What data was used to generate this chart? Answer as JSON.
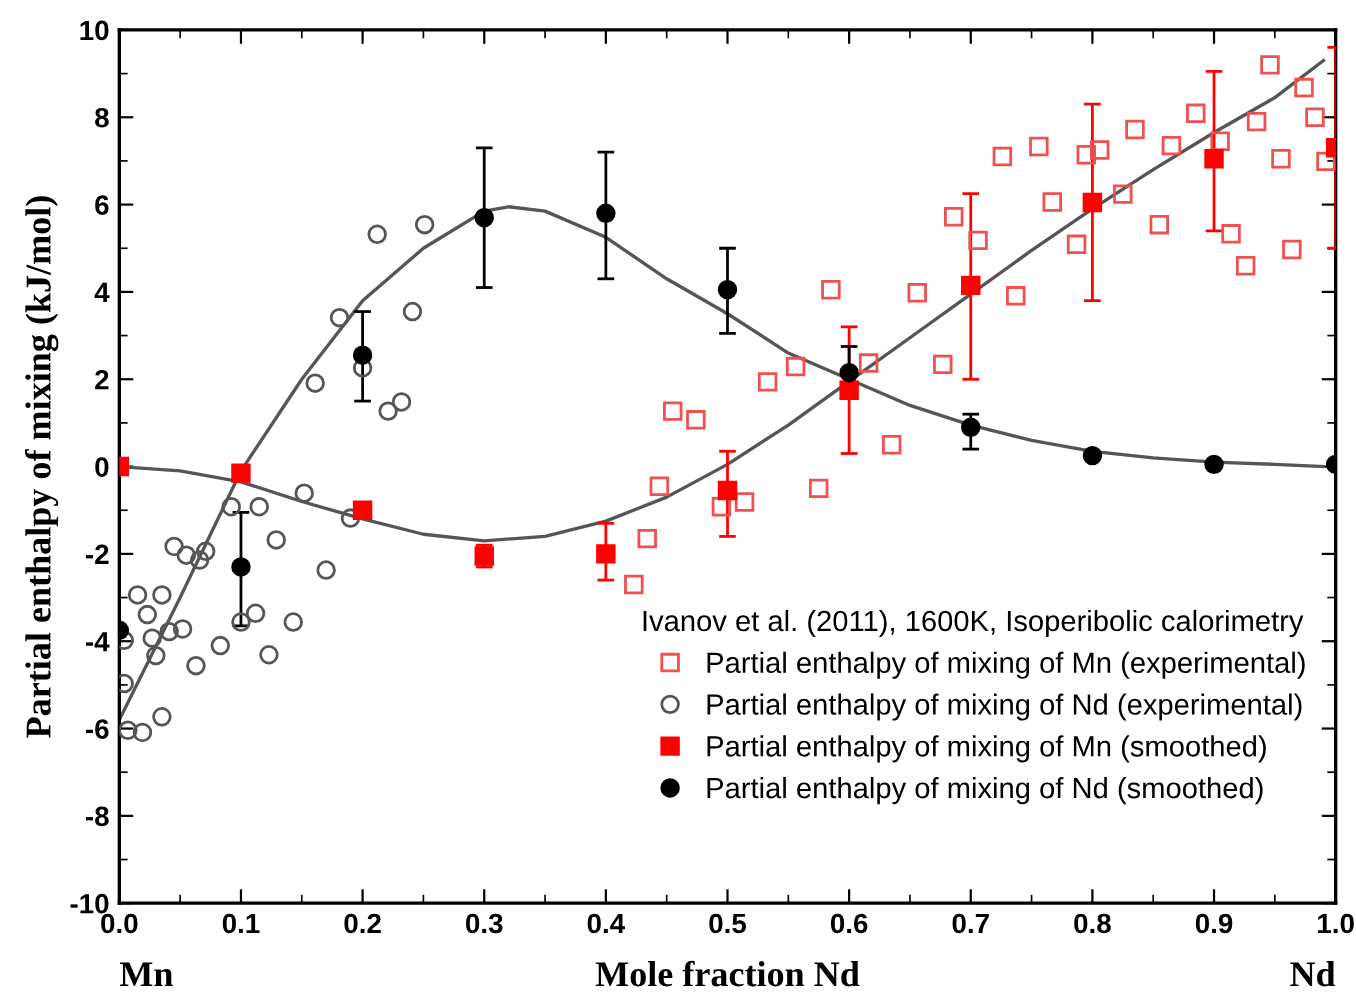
{
  "chart_data": {
    "type": "scatter",
    "xlabel": "Mole fraction Nd",
    "ylabel": "Partial enthalpy of mixing (kJ/mol)",
    "legend_title": "Ivanov et al. (2011), 1600K, Isoperibolic calorimetry",
    "annotations": [
      "Mn",
      "Nd"
    ],
    "xlim": [
      0,
      1
    ],
    "ylim": [
      -10,
      10
    ],
    "xticks": [
      {
        "value": 0,
        "label": "0.0"
      },
      0.1,
      0.2,
      0.3,
      0.4,
      0.5,
      0.6,
      0.7,
      0.8,
      0.9,
      {
        "value": 1,
        "label": "1.0"
      }
    ],
    "yticks": [
      -10,
      -8,
      -6,
      -4,
      -2,
      0,
      2,
      4,
      6,
      8,
      10
    ],
    "grid": false,
    "legend": "bottom right",
    "series": [
      {
        "type": "line",
        "color": "#555555",
        "marker": "none",
        "line_style": "solid",
        "x": [
          0,
          0.05,
          0.1,
          0.15,
          0.2,
          0.25,
          0.3,
          0.35,
          0.4,
          0.45,
          0.5,
          0.55,
          0.6,
          0.65,
          0.7,
          0.75,
          0.8,
          0.85,
          0.9,
          0.95,
          0.99
        ],
        "values": [
          0,
          -0.1,
          -0.35,
          -0.8,
          -1.2,
          -1.55,
          -1.7,
          -1.6,
          -1.25,
          -0.7,
          0.05,
          0.95,
          1.95,
          2.95,
          3.95,
          4.95,
          5.9,
          6.8,
          7.65,
          8.45,
          9.3
        ]
      },
      {
        "type": "line",
        "color": "#555555",
        "marker": "none",
        "line_style": "solid",
        "x": [
          0,
          0.05,
          0.1,
          0.15,
          0.2,
          0.25,
          0.3,
          0.32,
          0.35,
          0.4,
          0.45,
          0.5,
          0.55,
          0.6,
          0.65,
          0.7,
          0.75,
          0.8,
          0.85,
          0.9,
          0.95,
          0.99
        ],
        "values": [
          -5.8,
          -3.0,
          -0.1,
          2.0,
          3.8,
          5.0,
          5.85,
          5.95,
          5.85,
          5.25,
          4.3,
          3.5,
          2.6,
          2.0,
          1.4,
          0.95,
          0.6,
          0.35,
          0.2,
          0.1,
          0.05,
          0.0
        ]
      },
      {
        "name": "Partial enthalpy of mixing of Mn (experimental)",
        "color": "#f05050",
        "marker": "square",
        "x": [
          0.455,
          0.474,
          0.444,
          0.434,
          0.423,
          0.495,
          0.514,
          0.533,
          0.556,
          0.585,
          0.616,
          0.635,
          0.575,
          0.656,
          0.677,
          0.686,
          0.706,
          0.726,
          0.737,
          0.756,
          0.767,
          0.787,
          0.795,
          0.806,
          0.825,
          0.835,
          0.855,
          0.865,
          0.885,
          0.905,
          0.914,
          0.926,
          0.935,
          0.946,
          0.955,
          0.964,
          0.974,
          0.983,
          0.992
        ],
        "values": [
          1.27,
          1.07,
          -0.45,
          -1.65,
          -2.7,
          -0.92,
          -0.81,
          1.94,
          2.29,
          4.05,
          2.37,
          0.5,
          -0.5,
          3.98,
          2.34,
          5.72,
          5.18,
          7.1,
          3.91,
          7.33,
          6.06,
          5.09,
          7.14,
          7.25,
          6.24,
          7.72,
          5.54,
          7.35,
          8.09,
          7.45,
          5.33,
          4.6,
          7.9,
          9.2,
          7.05,
          4.97,
          8.68,
          8.0,
          6.99
        ]
      },
      {
        "name": "Partial enthalpy of mixing of Nd (experimental)",
        "color": "#555555",
        "marker": "circle",
        "x": [
          0.092,
          0.115,
          0.152,
          0.19,
          0.129,
          0.17,
          0.045,
          0.055,
          0.066,
          0.071,
          0.015,
          0.035,
          0.023,
          0.004,
          0.027,
          0.041,
          0.052,
          0.03,
          0.063,
          0.083,
          0.1,
          0.112,
          0.123,
          0.143,
          0.004,
          0.035,
          0.007,
          0.019,
          0.161,
          0.181,
          0.2,
          0.212,
          0.221,
          0.232,
          0.241,
          0.251
        ],
        "values": [
          -0.92,
          -0.92,
          -0.61,
          -1.18,
          -1.68,
          -2.37,
          -1.83,
          -2.03,
          -2.14,
          -1.94,
          -2.94,
          -2.94,
          -3.39,
          -3.98,
          -3.93,
          -3.78,
          -3.72,
          -4.33,
          -4.56,
          -4.1,
          -3.56,
          -3.36,
          -4.31,
          -3.56,
          -4.97,
          -5.73,
          -6.04,
          -6.09,
          1.91,
          3.41,
          2.26,
          5.32,
          1.27,
          1.48,
          3.55,
          5.54
        ]
      },
      {
        "name": "Partial enthalpy of mixing of Mn (smoothed)",
        "color": "#ff0000",
        "marker": "square",
        "x": [
          0,
          0.1,
          0.2,
          0.3,
          0.4,
          0.5,
          0.6,
          0.7,
          0.8,
          0.9,
          1.0
        ],
        "values": [
          0,
          -0.15,
          -1.0,
          -2.05,
          -2.0,
          -0.55,
          1.75,
          4.15,
          6.05,
          7.05,
          7.3
        ],
        "errors": [
          null,
          null,
          null,
          [
            -2.3,
            -1.8
          ],
          [
            -2.6,
            -1.3
          ],
          [
            -1.6,
            0.35
          ],
          [
            0.3,
            3.2
          ],
          [
            2.0,
            6.25
          ],
          [
            3.8,
            8.3
          ],
          [
            5.4,
            9.05
          ],
          [
            5.0,
            9.6
          ]
        ]
      },
      {
        "name": "Partial enthalpy of mixing of Nd (smoothed)",
        "color": "#000000",
        "marker": "circle",
        "x": [
          0,
          0.1,
          0.2,
          0.3,
          0.4,
          0.5,
          0.6,
          0.7,
          0.8,
          0.9,
          1.0
        ],
        "values": [
          -3.75,
          -2.3,
          2.55,
          5.7,
          5.8,
          4.05,
          2.15,
          0.9,
          0.25,
          0.05,
          0.05
        ],
        "errors": [
          null,
          [
            -3.65,
            -1.05
          ],
          [
            1.5,
            3.55
          ],
          [
            4.1,
            7.3
          ],
          [
            4.3,
            7.2
          ],
          [
            3.05,
            5.0
          ],
          [
            1.6,
            2.75
          ],
          [
            0.4,
            1.2
          ],
          null,
          null,
          null
        ]
      }
    ]
  }
}
